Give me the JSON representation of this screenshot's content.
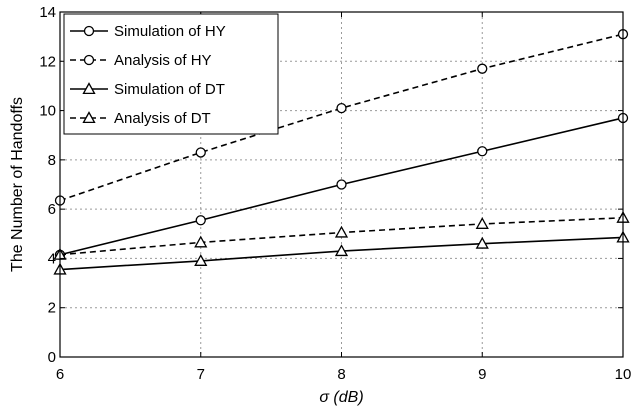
{
  "chart_data": {
    "type": "line",
    "xlabel": "σ (dB)",
    "ylabel": "The Number of Handoffs",
    "xlim": [
      6,
      10
    ],
    "ylim": [
      0,
      14
    ],
    "xticks": [
      6,
      7,
      8,
      9,
      10
    ],
    "yticks": [
      0,
      2,
      4,
      6,
      8,
      10,
      12,
      14
    ],
    "xtick_labels": [
      "6",
      "7",
      "8",
      "9",
      "10"
    ],
    "ytick_labels": [
      "0",
      "2",
      "4",
      "6",
      "8",
      "10",
      "12",
      "14"
    ],
    "grid": true,
    "legend_position": "top-left",
    "series": [
      {
        "name": "Simulation of HY",
        "marker": "circle",
        "line_style": "solid",
        "x": [
          6,
          7,
          8,
          9,
          10
        ],
        "y": [
          4.15,
          5.55,
          7.0,
          8.35,
          9.7
        ]
      },
      {
        "name": "Analysis of HY",
        "marker": "circle",
        "line_style": "dashed",
        "x": [
          6,
          7,
          8,
          9,
          10
        ],
        "y": [
          6.35,
          8.3,
          10.1,
          11.7,
          13.1
        ]
      },
      {
        "name": "Simulation of DT",
        "marker": "triangle",
        "line_style": "solid",
        "x": [
          6,
          7,
          8,
          9,
          10
        ],
        "y": [
          3.55,
          3.9,
          4.3,
          4.6,
          4.85
        ]
      },
      {
        "name": "Analysis of DT",
        "marker": "triangle",
        "line_style": "dashed",
        "x": [
          6,
          7,
          8,
          9,
          10
        ],
        "y": [
          4.15,
          4.65,
          5.05,
          5.4,
          5.65
        ]
      }
    ]
  }
}
